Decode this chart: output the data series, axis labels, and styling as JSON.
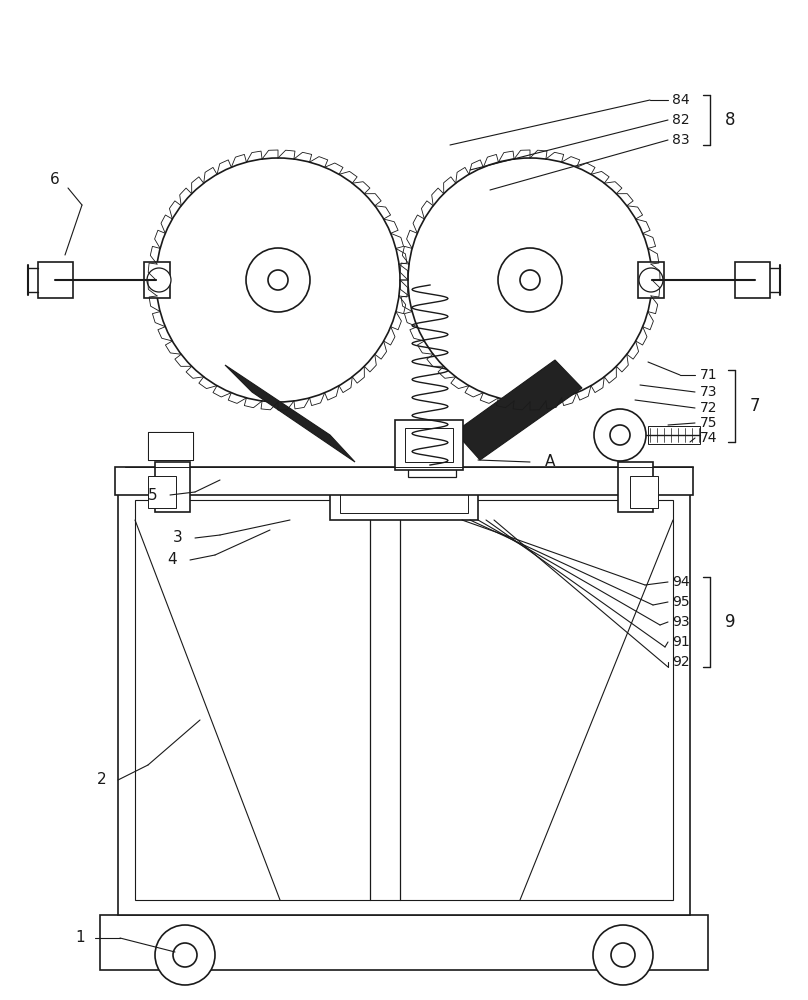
{
  "bg_color": "#ffffff",
  "line_color": "#1a1a1a",
  "line_width": 1.2,
  "fig_width": 8.08,
  "fig_height": 10.0
}
